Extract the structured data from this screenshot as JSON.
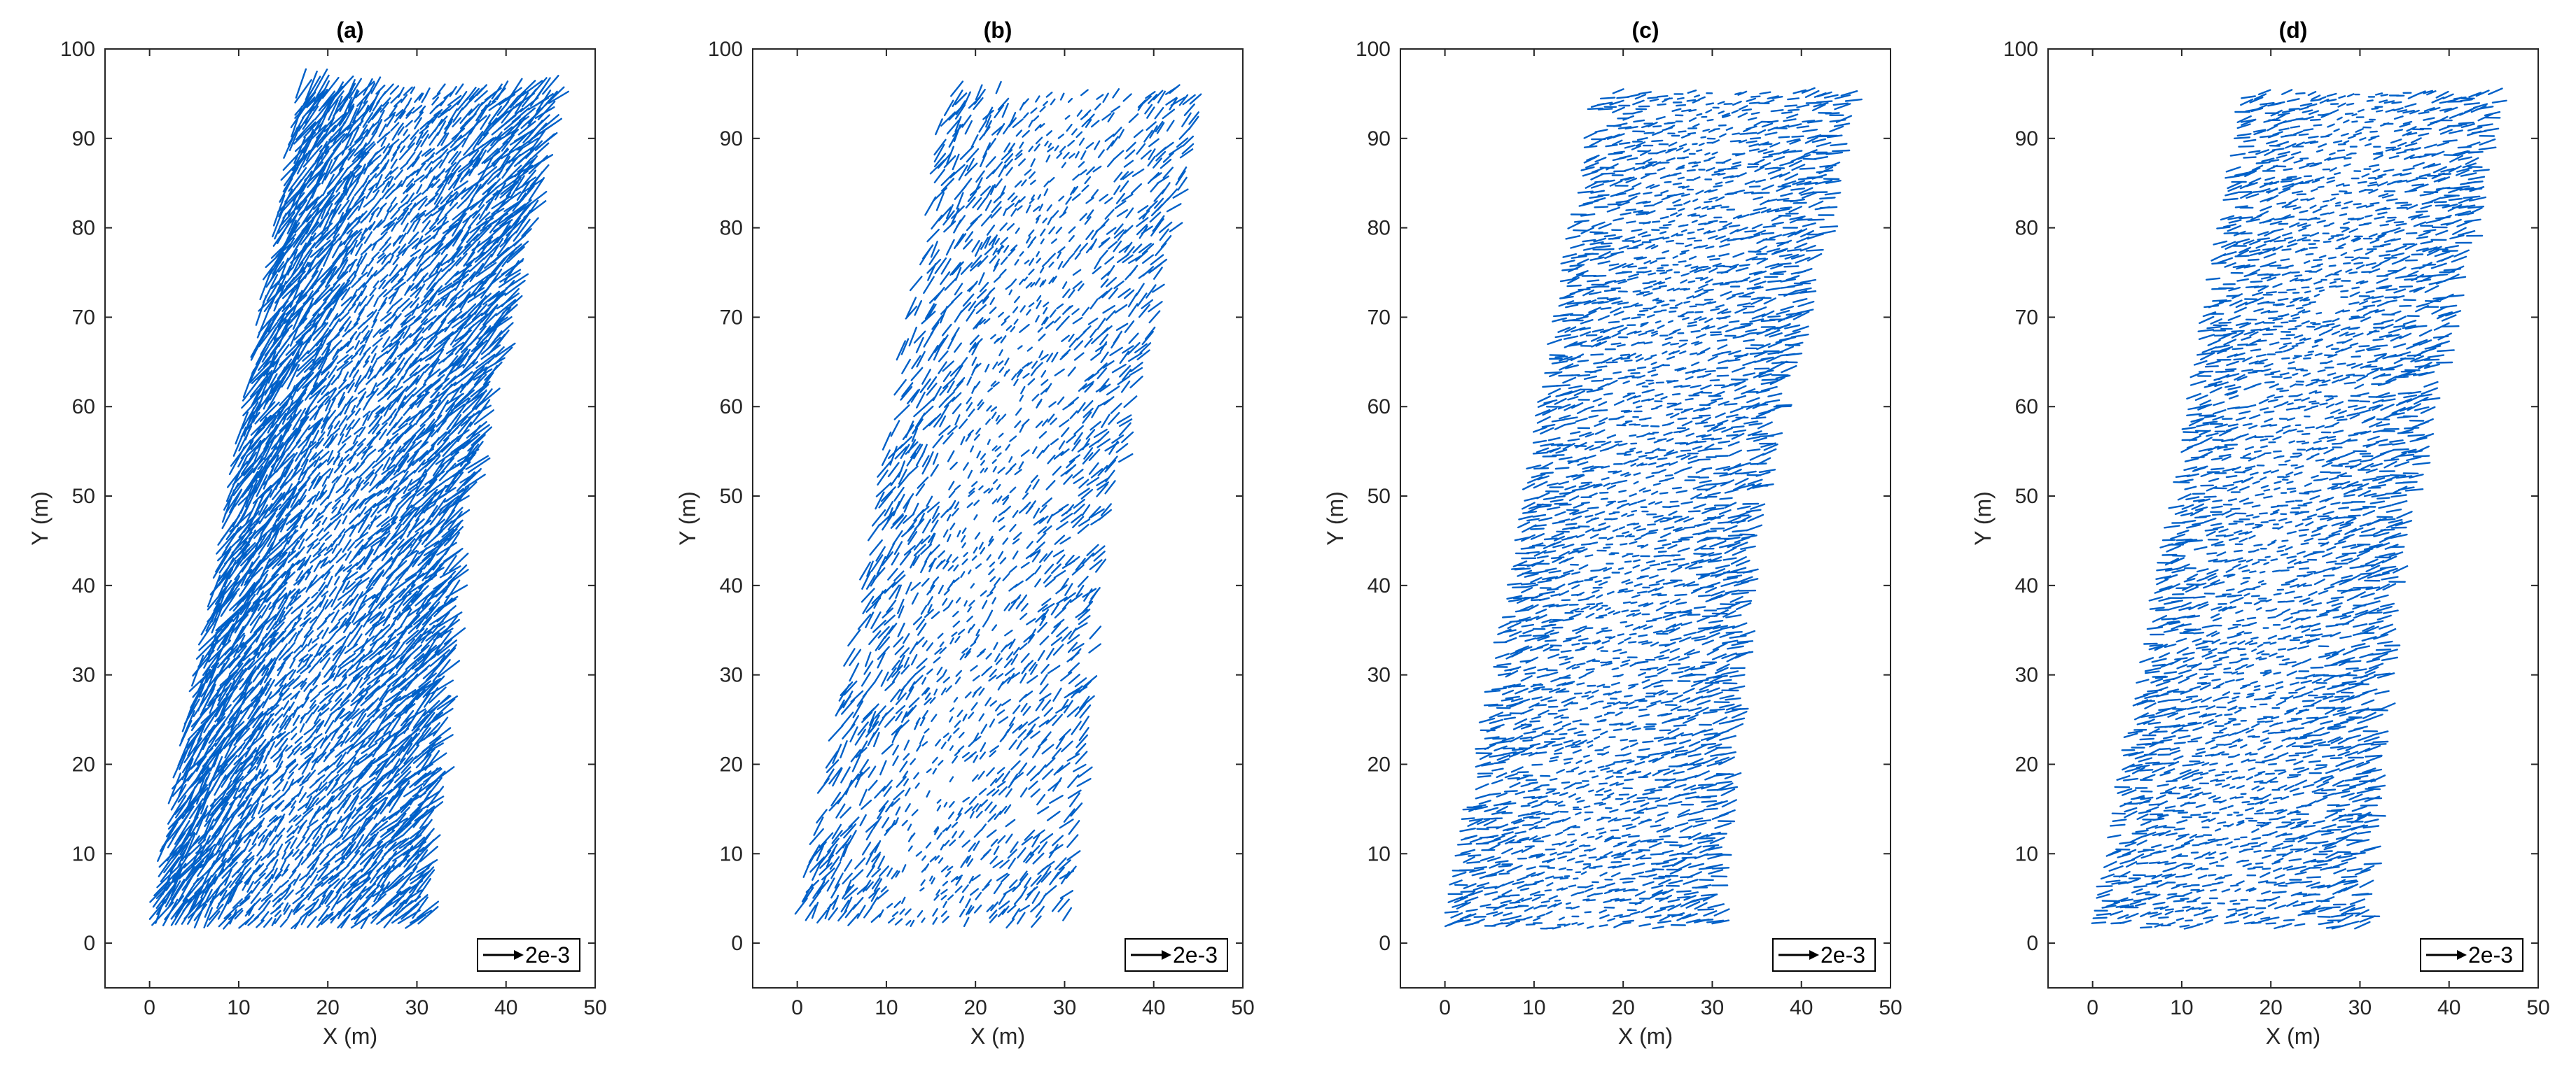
{
  "figure": {
    "panel_count": 4,
    "quiver_color": "#0060c8",
    "axis_color": "#262626"
  },
  "chart_data": [
    {
      "type": "quiver",
      "title": "(a)",
      "xlabel": "X (m)",
      "ylabel": "Y (m)",
      "xlim": [
        -5,
        50
      ],
      "ylim": [
        -5,
        100
      ],
      "xticks": [
        0,
        10,
        20,
        30,
        40,
        50
      ],
      "yticks": [
        0,
        10,
        20,
        30,
        40,
        50,
        60,
        70,
        80,
        90,
        100
      ],
      "grid": false,
      "legend": {
        "position": "bottom-right",
        "reference_vector_label": "2e-3"
      },
      "vector_field": {
        "left_edge": [
          [
            0,
            3
          ],
          [
            8,
            45
          ],
          [
            17,
            97
          ]
        ],
        "right_edge": [
          [
            30,
            3
          ],
          [
            34,
            45
          ],
          [
            45,
            94
          ]
        ],
        "dominant_direction": "up-right",
        "relative_density": "very high"
      }
    },
    {
      "type": "quiver",
      "title": "(b)",
      "xlabel": "X (m)",
      "ylabel": "Y (m)",
      "xlim": [
        -5,
        50
      ],
      "ylim": [
        -5,
        100
      ],
      "xticks": [
        0,
        10,
        20,
        30,
        40,
        50
      ],
      "yticks": [
        0,
        10,
        20,
        30,
        40,
        50,
        60,
        70,
        80,
        90,
        100
      ],
      "grid": false,
      "legend": {
        "position": "bottom-right",
        "reference_vector_label": "2e-3"
      },
      "vector_field": {
        "left_edge": [
          [
            0,
            3
          ],
          [
            8,
            45
          ],
          [
            17,
            97
          ]
        ],
        "right_edge": [
          [
            30,
            3
          ],
          [
            34,
            45
          ],
          [
            45,
            94
          ]
        ],
        "dominant_direction": "up-right",
        "relative_density": "medium"
      }
    },
    {
      "type": "quiver",
      "title": "(c)",
      "xlabel": "X (m)",
      "ylabel": "Y (m)",
      "xlim": [
        -5,
        50
      ],
      "ylim": [
        -5,
        100
      ],
      "xticks": [
        0,
        10,
        20,
        30,
        40,
        50
      ],
      "yticks": [
        0,
        10,
        20,
        30,
        40,
        50,
        60,
        70,
        80,
        90,
        100
      ],
      "grid": false,
      "legend": {
        "position": "bottom-right",
        "reference_vector_label": "2e-3"
      },
      "vector_field": {
        "left_edge": [
          [
            0,
            3
          ],
          [
            8,
            45
          ],
          [
            17,
            97
          ]
        ],
        "right_edge": [
          [
            30,
            3
          ],
          [
            34,
            45
          ],
          [
            45,
            94
          ]
        ],
        "dominant_direction": "right",
        "relative_density": "high"
      }
    },
    {
      "type": "quiver",
      "title": "(d)",
      "xlabel": "X (m)",
      "ylabel": "Y (m)",
      "xlim": [
        -5,
        50
      ],
      "ylim": [
        -5,
        100
      ],
      "xticks": [
        0,
        10,
        20,
        30,
        40,
        50
      ],
      "yticks": [
        0,
        10,
        20,
        30,
        40,
        50,
        60,
        70,
        80,
        90,
        100
      ],
      "grid": false,
      "legend": {
        "position": "bottom-right",
        "reference_vector_label": "2e-3"
      },
      "vector_field": {
        "left_edge": [
          [
            0,
            3
          ],
          [
            8,
            45
          ],
          [
            17,
            97
          ]
        ],
        "right_edge": [
          [
            30,
            3
          ],
          [
            34,
            45
          ],
          [
            45,
            94
          ]
        ],
        "dominant_direction": "right",
        "relative_density": "high"
      }
    }
  ]
}
